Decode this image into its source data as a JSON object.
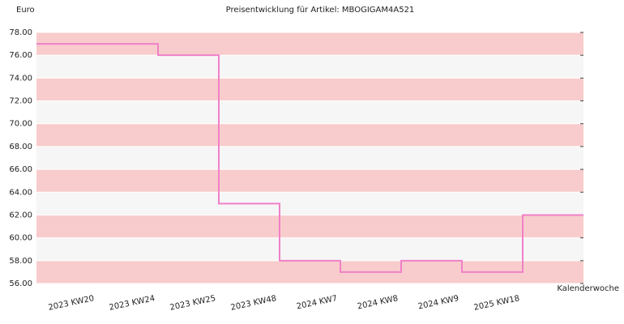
{
  "chart_data": {
    "type": "step",
    "title": "Preisentwicklung für Artikel: MBOGIGAM4A521",
    "y_label": "Euro",
    "x_label": "Kalenderwoche",
    "categories": [
      "2023 KW20",
      "2023 KW24",
      "2023 KW25",
      "2023 KW48",
      "2024 KW7",
      "2024 KW8",
      "2024 KW9",
      "2025 KW18"
    ],
    "values": [
      77,
      76,
      63,
      58,
      57,
      58,
      57,
      62
    ],
    "color": "#f080c8",
    "ylim": [
      56,
      78
    ],
    "yticks": [
      {
        "value": 56,
        "label": "56.00"
      },
      {
        "value": 58,
        "label": "58.00"
      },
      {
        "value": 60,
        "label": "60.00"
      },
      {
        "value": 62,
        "label": "62.00"
      },
      {
        "value": 64,
        "label": "64.00"
      },
      {
        "value": 66,
        "label": "66.00"
      },
      {
        "value": 68,
        "label": "68.00"
      },
      {
        "value": 70,
        "label": "70.00"
      },
      {
        "value": 72,
        "label": "72.00"
      },
      {
        "value": 74,
        "label": "74.00"
      },
      {
        "value": 76,
        "label": "76.00"
      },
      {
        "value": 78,
        "label": "78.00"
      }
    ],
    "grid": true
  }
}
